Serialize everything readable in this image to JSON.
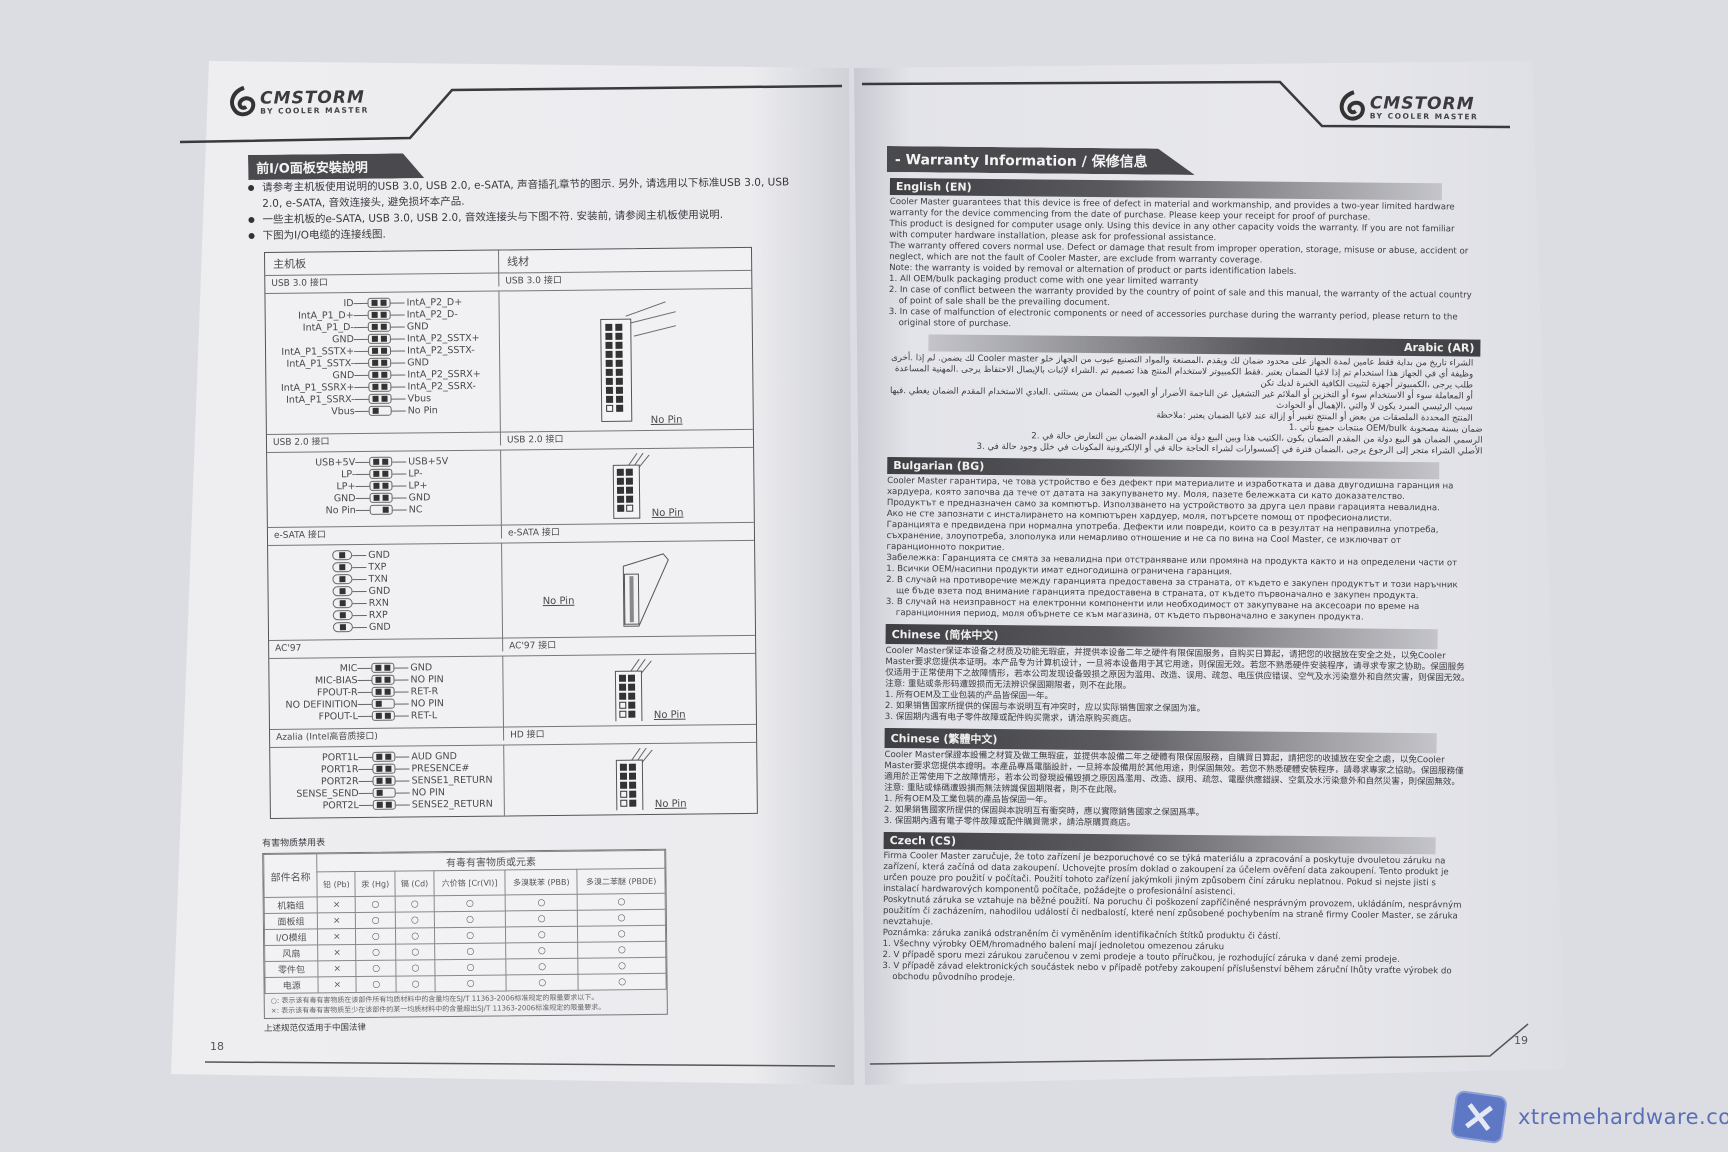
{
  "left_page": {
    "logo": {
      "brand": "CMSTORM",
      "sub": "BY COOLER MASTER"
    },
    "section_title": "前I/O面板安裝說明",
    "bullets": [
      "请参考主机板使用说明的USB 3.0, USB 2.0, e-SATA, 声音插孔章节的图示. 另外, 请选用以下标准USB 3.0, USB 2.0, e-SATA, 音效连接头, 避免损坏本产品.",
      "一些主机板的e-SATA, USB 3.0, USB 2.0, 音效连接头与下图不符. 安装前, 请参阅主机板使用说明.",
      "下图为I/O电缆的连接线图."
    ],
    "io_table": {
      "header_left": "主机板",
      "header_right": "线材",
      "no_pin_label": "No Pin",
      "sections": [
        {
          "left_title": "USB 3.0 接口",
          "right_title": "USB 3.0 接口",
          "pins": [
            {
              "l": "ID",
              "r": "IntA_P2_D+"
            },
            {
              "l": "IntA_P1_D+",
              "r": "IntA_P2_D-"
            },
            {
              "l": "IntA_P1_D-",
              "r": "GND"
            },
            {
              "l": "GND",
              "r": "IntA_P2_SSTX+"
            },
            {
              "l": "IntA_P1_SSTX+",
              "r": "IntA_P2_SSTX-"
            },
            {
              "l": "IntA_P1_SSTX-",
              "r": "GND"
            },
            {
              "l": "GND",
              "r": "IntA_P2_SSRX+"
            },
            {
              "l": "IntA_P1_SSRX+",
              "r": "IntA_P2_SSRX-"
            },
            {
              "l": "IntA_P1_SSRX-",
              "r": "Vbus"
            },
            {
              "l": "Vbus",
              "r": "No Pin",
              "missing": true
            }
          ]
        },
        {
          "left_title": "USB 2.0 接口",
          "right_title": "USB 2.0 接口",
          "pins": [
            {
              "l": "USB+5V",
              "r": "USB+5V"
            },
            {
              "l": "LP-",
              "r": "LP-"
            },
            {
              "l": "LP+",
              "r": "LP+"
            },
            {
              "l": "GND",
              "r": "GND"
            },
            {
              "l": "No Pin",
              "r": "NC",
              "missing_left": true
            }
          ]
        },
        {
          "left_title": "e-SATA 接口",
          "right_title": "e-SATA 接口",
          "single": true,
          "pins": [
            {
              "r": "GND"
            },
            {
              "r": "TXP"
            },
            {
              "r": "TXN"
            },
            {
              "r": "GND"
            },
            {
              "r": "RXN"
            },
            {
              "r": "RXP"
            },
            {
              "r": "GND"
            }
          ]
        },
        {
          "left_title": "AC'97",
          "right_title": "AC'97 接口",
          "pins": [
            {
              "l": "MIC",
              "r": "GND"
            },
            {
              "l": "MIC-BIAS",
              "r": "NO PIN"
            },
            {
              "l": "FPOUT-R",
              "r": "RET-R"
            },
            {
              "l": "NO DEFINITION",
              "r": "NO PIN",
              "missing": true
            },
            {
              "l": "FPOUT-L",
              "r": "RET-L"
            }
          ]
        },
        {
          "left_title": "Azalia (Intel高音质接口)",
          "right_title": "HD 接口",
          "pins": [
            {
              "l": "PORT1L",
              "r": "AUD GND"
            },
            {
              "l": "PORT1R",
              "r": "PRESENCE#"
            },
            {
              "l": "PORT2R",
              "r": "SENSE1_RETURN"
            },
            {
              "l": "SENSE_SEND",
              "r": "NO PIN",
              "missing": true
            },
            {
              "l": "PORT2L",
              "r": "SENSE2_RETURN"
            }
          ]
        }
      ]
    },
    "hazard": {
      "title": "有害物质禁用表",
      "part_header": "部件名称",
      "group_header": "有毒有害物质或元素",
      "substances": [
        "铅 (Pb)",
        "汞 (Hg)",
        "镉 (Cd)",
        "六价铬 [Cr(VI)]",
        "多溴联苯 (PBB)",
        "多溴二苯醚 (PBDE)"
      ],
      "rows": [
        {
          "part": "机箱组",
          "marks": [
            "×",
            "○",
            "○",
            "○",
            "○",
            "○"
          ]
        },
        {
          "part": "面板组",
          "marks": [
            "×",
            "○",
            "○",
            "○",
            "○",
            "○"
          ]
        },
        {
          "part": "I/O模组",
          "marks": [
            "×",
            "○",
            "○",
            "○",
            "○",
            "○"
          ]
        },
        {
          "part": "风扇",
          "marks": [
            "×",
            "○",
            "○",
            "○",
            "○",
            "○"
          ]
        },
        {
          "part": "零件包",
          "marks": [
            "×",
            "○",
            "○",
            "○",
            "○",
            "○"
          ]
        },
        {
          "part": "电源",
          "marks": [
            "×",
            "○",
            "○",
            "○",
            "○",
            "○"
          ]
        }
      ],
      "notes": [
        "○: 表示该有毒有害物质在该部件所有均质材料中的含量均在SJ/T 11363-2006标准规定的限量要求以下。",
        "×: 表示该有毒有害物质至少在该部件的某一均质材料中的含量超出SJ/T 11363-2006标准规定的限量要求。"
      ],
      "footer": "上述规范仅适用于中国法律"
    },
    "page_number": "18"
  },
  "right_page": {
    "logo": {
      "brand": "CMSTORM",
      "sub": "BY COOLER MASTER"
    },
    "title": "- Warranty Information / 保修信息",
    "sections": [
      {
        "header": "English (EN)",
        "paragraphs": [
          "Cooler Master guarantees that this device is free of defect in material and workmanship, and provides a two-year limited hardware warranty for the device commencing from the date of purchase. Please keep your receipt for proof of purchase.",
          "This product is designed for computer usage only. Using this device in any other capacity voids the warranty. If you are not familiar with computer hardware installation, please ask for professional assistance.",
          "The warranty offered covers normal use. Defect or damage that result from improper operation, storage, misuse or abuse, accident or neglect, which are not the fault of Cooler Master, are exclude from warranty coverage.",
          "Note: the warranty is voided by removal or alternation of product or parts identification labels."
        ],
        "items": [
          "1. All OEM/bulk packaging product come with one year limited warranty",
          "2. In case of conflict between the warranty provided by the country of point of sale and this manual, the warranty of the actual country of point of sale shall be the prevailing document.",
          "3. In case of malfunction of electronic components or need of accessories purchase during the warranty period, please return to the original store of purchase."
        ]
      },
      {
        "header": "Arabic (AR)",
        "rtl": true,
        "paragraphs": [
          "الشراء تاريخ من بداية فقط عامين لمدة الجهاز على محدود ضمان لك ويقدم ،المصنعة والمواد التصنيع عيوب من الجهاز خلو Cooler master لك يضمن. لم إذا .أخرى وظيفة أي في الجهاز هذا استخدام تم إذا لاغيا الضمان يعتبر .فقط الكمبيوتر لاستخدام المنتج هذا تصميم تم .الشراء لإثبات بالإيصال الاحتفاظ يرجى .المهنية المساعدة طلب يرجى ،الكمبيوتر أجهزة لتثبيت الكافية الخبرة لديك تكن",
          "أو المعاملة سوء أو الاستخدام سوء أو التخزين أو الملائم غير التشغيل عن الناجمة الأضرار أو العيوب الضمان من يستثنى .العادي الاستخدام المقدم الضمان يغطي .فيها سبب الرئيسي المبرد يكون لا والتي ،الإهمال أو الحوادث",
          "المنتج المحددة الملصقات من بعض أو المنتج تغيير أو إزالة عند لاغيا الضمان يعتبر :ملاحظة"
        ],
        "items": [
          "ضمان بسنة مصحوبة OEM/bulk منتجات جميع تأتي .1",
          "الرسمي الضمان هو البيع دولة من المقدم الضمان يكون ،الكتيب هذا وبين البيع دولة من المقدم الضمان بين التعارض حالة في .2",
          "الأصلي الشراء متجر إلى الرجوع يرجى ،الضمان فترة في إكسسوارات لشراء الحاجة حالة في أو الإلكترونية المكونات في خلل وجود حالة في .3"
        ]
      },
      {
        "header": "Bulgarian (BG)",
        "paragraphs": [
          "Cooler Master гарантира, че това устройство е без дефект при материалите и изработката и дава двугодишна гаранция на хардуера, която започва да тече от датата на закупуването му. Моля, пазете бележката си като доказателство.",
          "Продуктът е предназначен само за компютър. Използването на устройството за друга цел прави гарацията невалидна.",
          "Ако не сте запознати с инсталирането на компютърен хардуер, моля, потърсете помощ от професионалисти.",
          "Гаранцията е предвидена при нормална употреба. Дефекти или повреди, които са в резултат на неправилна употреба, съхранение, злоупотреба, злополука или немарливо отношение и не са по вина на Cool Master, се изключват от гаранционното покритие.",
          "Забележка: Гаранцията се смята за невалидна при отстраняване или промяна на продукта както и на определени части от"
        ],
        "items": [
          "1. Всички OEM/насипни продукти имат едногодишна ограничена гаранция.",
          "2. В случай на противоречие между гаранцията предоставена за страната, от където е закупен продуктът и този наръчник ще бъде взета под внимание гаранцията предоставена в страната, от където първоначално е закупен продукта.",
          "3. В случай на неизправност на електронни компоненти или необходимост от закупуване на аксесоари по време на гаранционния период, моля обърнете се към магазина, от където първоначално е закупен продукта."
        ]
      },
      {
        "header": "Chinese (简体中文)",
        "paragraphs": [
          "Cooler Master保证本设备之材质及功能无瑕疵，并提供本设备二年之硬件有限保固服务，自购买日算起，请把您的收据放在安全之处，以免Cooler Master要求您提供本证明。本产品专为计算机设计，一旦将本设备用于其它用途，则保固无效。若您不熟悉硬件安装程序，请寻求专家之协助。保固服务仅适用于正常使用下之故障情形，若本公司发现设备毁损之原因为滥用、改造、误用、疏忽、电压供应错误、空气及水污染意外和自然灾害，则保固无效。",
          "注意: 重贴或条形码遭毁损而无法辨识保固期限者，则不在此限。"
        ],
        "items": [
          "1. 所有OEM及工业包装的产品皆保固一年。",
          "2. 如果销售国家所提供的保固与本说明互有冲突时，应以实际销售国家之保固为准。",
          "3. 保固期内遇有电子零件故障或配件购买需求，请洽原购买商店。"
        ]
      },
      {
        "header": "Chinese (繁體中文)",
        "paragraphs": [
          "Cooler Master保證本設備之材質及做工無瑕疵，並提供本設備二年之硬體有限保固服務，自購買日算起，請把您的收據放在安全之處，以免Cooler Master要求您提供本證明。本產品專爲電腦設計，一旦將本設備用於其他用途，則保固無效。若您不熟悉硬體安裝程序，請尋求專家之協助。保固服務僅適用於正常使用下之故障情形，若本公司發現設備毀損之原因爲濫用、改造、誤用、疏忽、電壓供應錯誤、空氣及水污染意外和自然災害，則保固無效。",
          "注意: 重貼或條碼遭毀損而無法辨識保固期限者，則不在此限。"
        ],
        "items": [
          "1. 所有OEM及工業包裝的產品皆保固一年。",
          "2. 如果銷售國家所提供的保固與本說明互有衝突時，應以實際銷售國家之保固爲準。",
          "3. 保固期內遇有電子零件故障或配件購買需求，請洽原購買商店。"
        ]
      },
      {
        "header": "Czech (CS)",
        "paragraphs": [
          "Firma Cooler Master zaručuje, že toto zařízení je bezporuchové co se týká materiálu a zpracování a poskytuje dvouletou záruku na zařízení, která začíná od data zakoupení. Uchovejte prosím doklad o zakoupení za účelem ověření data zakoupení. Tento produkt je určen pouze pro použití v počítači. Použití tohoto zařízení jakýmkoli jiným způsobem činí záruku neplatnou. Pokud si nejste jisti s instalací hardwarových komponentů počítače, požádejte o profesionální asistenci.",
          "Poskytnutá záruka se vztahuje na běžné použití. Na poruchu či poškození zapříčiněné nesprávným provozem, ukládáním, nesprávným použitím či zacházením, nahodilou událostí či nedbalostí, které není způsobené pochybením na straně firmy Cooler Master, se záruka nevztahuje.",
          "Poznámka: záruka zaniká odstraněním či vyměněním identifikačních štítků produktu či částí."
        ],
        "items": [
          "1. Všechny výrobky OEM/hromadného balení mají jednoletou omezenou záruku",
          "2. V případě sporu mezi zárukou zaručenou v zemi prodeje a touto příručkou, je rozhodující záruka v dané zemi prodeje.",
          "3. V případě závad elektronických součástek nebo v případě potřeby zakoupení příslušenství během záruční lhůty vraťte výrobek do obchodu původního prodeje."
        ]
      }
    ],
    "page_number": "19"
  },
  "watermark": {
    "text": "xtremehardware.com",
    "color": "#5a6fb8"
  }
}
